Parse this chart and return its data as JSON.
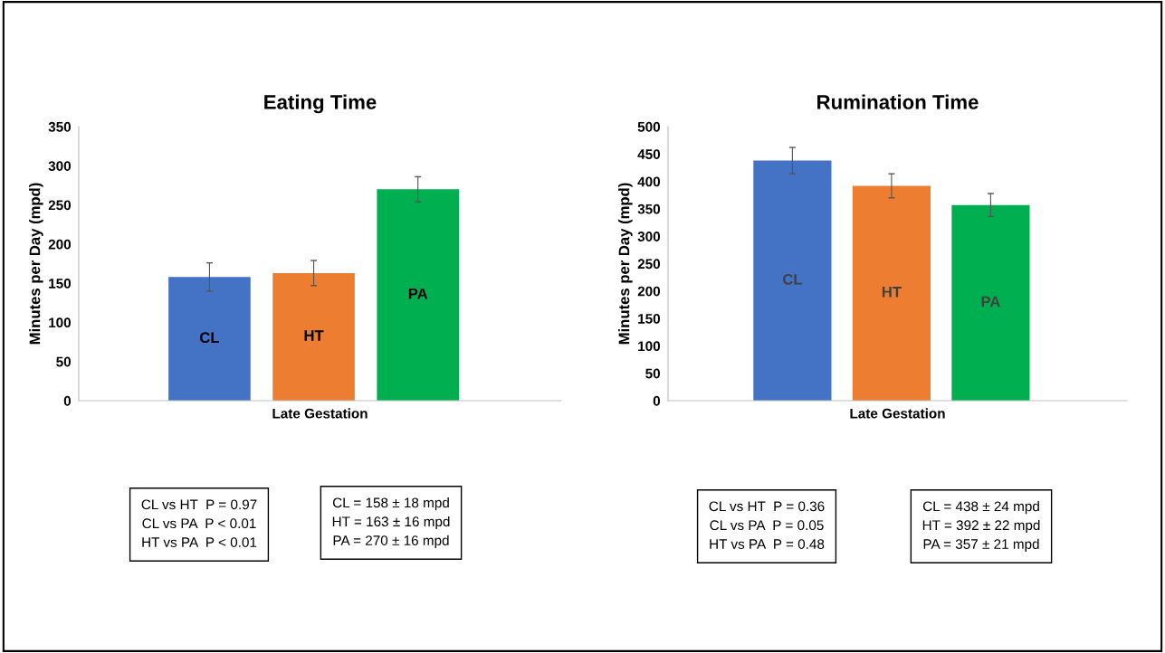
{
  "chart_data": [
    {
      "type": "bar",
      "title": "Eating Time",
      "ylabel": "Minutes per Day (mpd)",
      "categories": [
        "Late Gestation"
      ],
      "ylim": [
        0,
        350
      ],
      "yticks": [
        0,
        50,
        100,
        150,
        200,
        250,
        300,
        350
      ],
      "grid": false,
      "legend": false,
      "series": [
        {
          "name": "CL",
          "color": "#4472c4",
          "values": [
            158
          ],
          "errors": [
            18
          ]
        },
        {
          "name": "HT",
          "color": "#ed7d31",
          "values": [
            163
          ],
          "errors": [
            16
          ]
        },
        {
          "name": "PA",
          "color": "#00b050",
          "values": [
            270
          ],
          "errors": [
            16
          ]
        }
      ],
      "annotations": [
        "CL vs HT  P = 0.97\nCL vs PA  P < 0.01\nHT vs PA  P < 0.01",
        "CL = 158 ± 18 mpd\nHT = 163 ± 16 mpd\nPA = 270 ± 16 mpd"
      ]
    },
    {
      "type": "bar",
      "title": "Rumination Time",
      "ylabel": "Minutes per Day (mpd)",
      "categories": [
        "Late Gestation"
      ],
      "ylim": [
        0,
        500
      ],
      "yticks": [
        0,
        50,
        100,
        150,
        200,
        250,
        300,
        350,
        400,
        450,
        500
      ],
      "grid": false,
      "legend": false,
      "series": [
        {
          "name": "CL",
          "color": "#4472c4",
          "values": [
            438
          ],
          "errors": [
            24
          ]
        },
        {
          "name": "HT",
          "color": "#ed7d31",
          "values": [
            392
          ],
          "errors": [
            22
          ]
        },
        {
          "name": "PA",
          "color": "#00b050",
          "values": [
            357
          ],
          "errors": [
            21
          ]
        }
      ],
      "annotations": [
        "CL vs HT  P = 0.36\nCL vs PA  P = 0.05\nHT vs PA  P = 0.48",
        "CL = 438 ± 24 mpd\nHT = 392 ± 22 mpd\nPA = 357 ± 21 mpd"
      ]
    }
  ]
}
